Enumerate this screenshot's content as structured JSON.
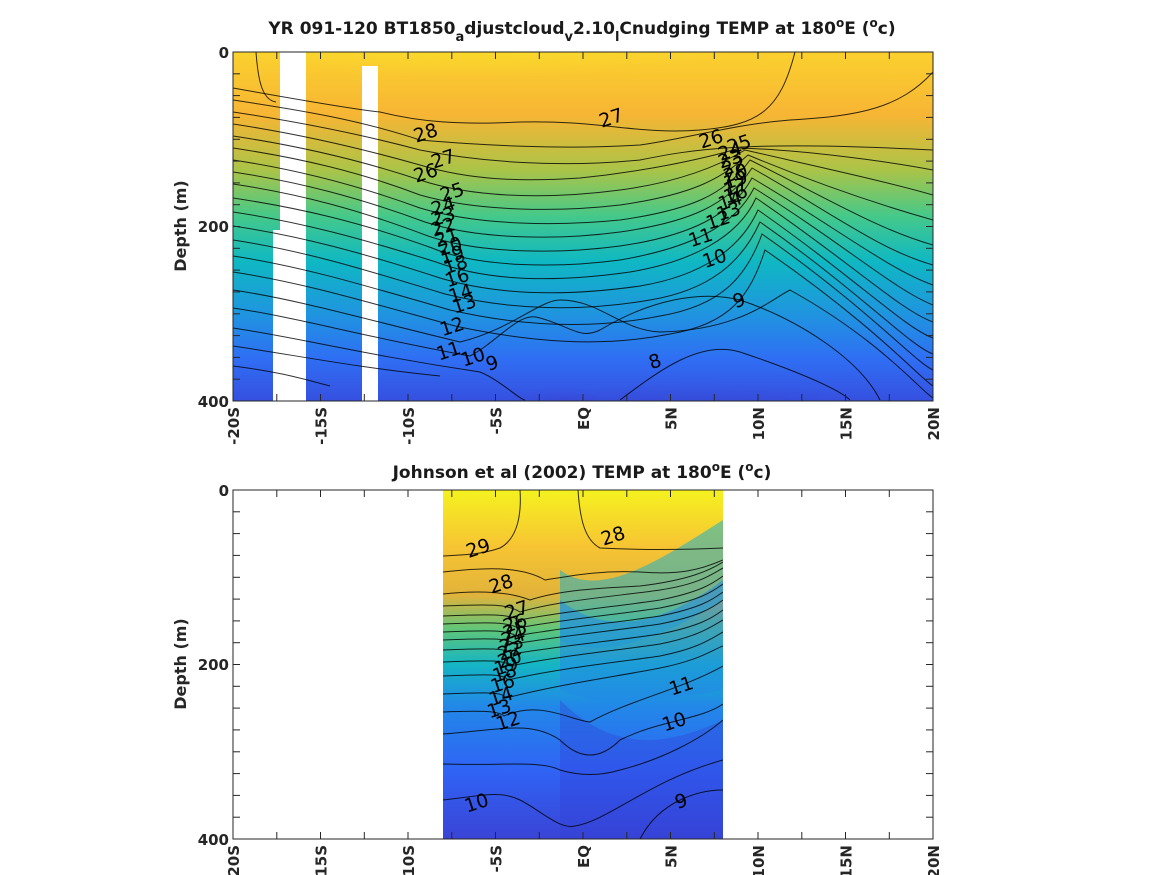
{
  "chart_data": [
    {
      "type": "heatmap",
      "title_parts": [
        "YR 091-120 BT1850",
        "a",
        "djustcloud",
        "v",
        "2.10",
        "l",
        "Cnudging TEMP at 180",
        "o",
        "E (",
        "o",
        "c)"
      ],
      "ylabel": "Depth (m)",
      "ylim": [
        0,
        400
      ],
      "xlim": [
        -20,
        20
      ],
      "yticks": [
        "0",
        "200",
        "400"
      ],
      "xticks": [
        "-20S",
        "-15S",
        "-10S",
        "-5S",
        "EQ",
        "5N",
        "10N",
        "15N",
        "20N"
      ],
      "colormap": [
        "#3e26a8",
        "#2f5ff6",
        "#1e9ad8",
        "#0cb9c1",
        "#42c98b",
        "#a3c349",
        "#f0b536",
        "#fbd62f",
        "#f5f920"
      ],
      "contour_labels": [
        {
          "text": "28",
          "x": -9.0,
          "y": 92
        },
        {
          "text": "27",
          "x": -8.0,
          "y": 122
        },
        {
          "text": "26",
          "x": -9.0,
          "y": 138
        },
        {
          "text": "25",
          "x": -7.5,
          "y": 160
        },
        {
          "text": "24",
          "x": -8.0,
          "y": 176
        },
        {
          "text": "23",
          "x": -8.0,
          "y": 188
        },
        {
          "text": "22",
          "x": -8.0,
          "y": 200
        },
        {
          "text": "21",
          "x": -7.8,
          "y": 212
        },
        {
          "text": "20",
          "x": -7.6,
          "y": 222
        },
        {
          "text": "19",
          "x": -7.5,
          "y": 232
        },
        {
          "text": "18",
          "x": -7.3,
          "y": 243
        },
        {
          "text": "16",
          "x": -7.2,
          "y": 258
        },
        {
          "text": "14",
          "x": -7.0,
          "y": 276
        },
        {
          "text": "13",
          "x": -6.8,
          "y": 288
        },
        {
          "text": "12",
          "x": -7.5,
          "y": 314
        },
        {
          "text": "11",
          "x": -7.7,
          "y": 342
        },
        {
          "text": "10",
          "x": -6.3,
          "y": 349
        },
        {
          "text": "9",
          "x": -5.2,
          "y": 356
        },
        {
          "text": "27",
          "x": 1.6,
          "y": 75
        },
        {
          "text": "26",
          "x": 7.3,
          "y": 99
        },
        {
          "text": "25",
          "x": 8.9,
          "y": 105
        },
        {
          "text": "24",
          "x": 8.4,
          "y": 113
        },
        {
          "text": "23",
          "x": 8.4,
          "y": 122
        },
        {
          "text": "22",
          "x": 8.6,
          "y": 130
        },
        {
          "text": "20",
          "x": 8.7,
          "y": 138
        },
        {
          "text": "19",
          "x": 8.7,
          "y": 146
        },
        {
          "text": "17",
          "x": 8.7,
          "y": 154
        },
        {
          "text": "16",
          "x": 8.7,
          "y": 162
        },
        {
          "text": "14",
          "x": 8.4,
          "y": 170
        },
        {
          "text": "13",
          "x": 8.3,
          "y": 182
        },
        {
          "text": "12",
          "x": 7.7,
          "y": 192
        },
        {
          "text": "11",
          "x": 6.7,
          "y": 212
        },
        {
          "text": "10",
          "x": 7.5,
          "y": 236
        },
        {
          "text": "9",
          "x": 8.9,
          "y": 284
        },
        {
          "text": "8",
          "x": 4.1,
          "y": 354
        }
      ]
    },
    {
      "type": "heatmap",
      "title_parts": [
        "Johnson et al (2002) TEMP at 180",
        "o",
        "E (",
        "o",
        "c)"
      ],
      "ylabel": "Depth (m)",
      "ylim": [
        0,
        400
      ],
      "xlim": [
        -20,
        20
      ],
      "yticks": [
        "0",
        "200",
        "400"
      ],
      "xticks": [
        "-20S",
        "-15S",
        "-10S",
        "-5S",
        "EQ",
        "5N",
        "10N",
        "15N",
        "20N"
      ],
      "data_extent": [
        -8,
        8
      ],
      "colormap": [
        "#3e26a8",
        "#2f5ff6",
        "#1e9ad8",
        "#0cb9c1",
        "#42c98b",
        "#a3c349",
        "#f0b536",
        "#fbd62f",
        "#f5f920"
      ],
      "contour_labels": [
        {
          "text": "29",
          "x": -6.0,
          "y": 66
        },
        {
          "text": "28",
          "x": 1.7,
          "y": 52
        },
        {
          "text": "28",
          "x": -4.7,
          "y": 107
        },
        {
          "text": "27",
          "x": -3.8,
          "y": 137
        },
        {
          "text": "26",
          "x": -3.9,
          "y": 152
        },
        {
          "text": "25",
          "x": -3.9,
          "y": 160
        },
        {
          "text": "24",
          "x": -4.0,
          "y": 168
        },
        {
          "text": "23",
          "x": -4.1,
          "y": 176
        },
        {
          "text": "22",
          "x": -4.2,
          "y": 184
        },
        {
          "text": "20",
          "x": -4.2,
          "y": 193
        },
        {
          "text": "19",
          "x": -4.4,
          "y": 201
        },
        {
          "text": "18",
          "x": -4.5,
          "y": 209
        },
        {
          "text": "16",
          "x": -4.6,
          "y": 221
        },
        {
          "text": "14",
          "x": -4.7,
          "y": 236
        },
        {
          "text": "13",
          "x": -4.8,
          "y": 250
        },
        {
          "text": "12",
          "x": -4.3,
          "y": 264
        },
        {
          "text": "11",
          "x": 5.6,
          "y": 224
        },
        {
          "text": "10",
          "x": 5.2,
          "y": 265
        },
        {
          "text": "10",
          "x": -6.1,
          "y": 358
        },
        {
          "text": "9",
          "x": 5.6,
          "y": 356
        }
      ]
    }
  ]
}
